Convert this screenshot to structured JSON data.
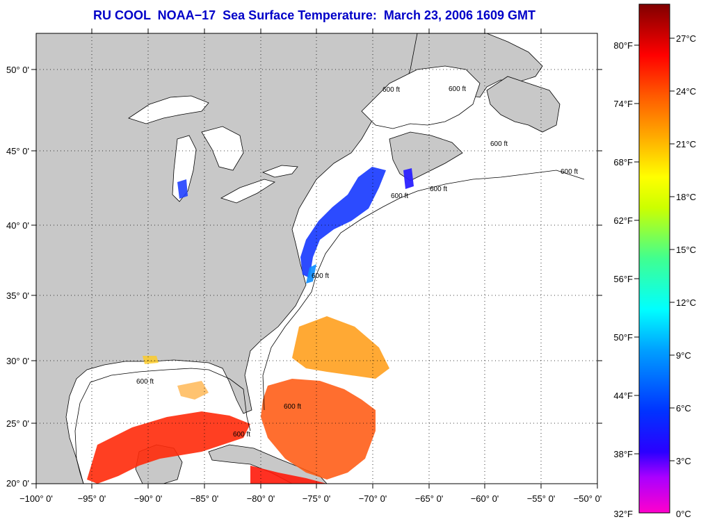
{
  "title": "RU COOL  NOAA−17  Sea Surface Temperature:  March 23, 2006 1609 GMT",
  "map": {
    "lon_ticks": [
      "−100° 0'",
      "−95° 0'",
      "−90° 0'",
      "−85° 0'",
      "−80° 0'",
      "−75° 0'",
      "−70° 0'",
      "−65° 0'",
      "−60° 0'",
      "−55° 0'",
      "−50° 0'"
    ],
    "lat_ticks": [
      "50° 0'",
      "45° 0'",
      "40° 0'",
      "35° 0'",
      "30° 0'",
      "25° 0'",
      "20° 0'"
    ],
    "isobath_labels": [
      "600 ft",
      "600 ft",
      "600 ft",
      "600 ft",
      "600 ft",
      "600 ft",
      "600 ft",
      "600 ft",
      "600 ft",
      "600 ft"
    ],
    "colors": {
      "land": "#c8c8c8",
      "ocean_nodata": "#ffffff",
      "grid": "#000000"
    }
  },
  "colorbar": {
    "fahrenheit_ticks": [
      "80°F",
      "74°F",
      "68°F",
      "62°F",
      "56°F",
      "50°F",
      "44°F",
      "38°F",
      "32°F"
    ],
    "celsius_ticks": [
      "27°C",
      "24°C",
      "21°C",
      "18°C",
      "15°C",
      "12°C",
      "9°C",
      "6°C",
      "3°C",
      "0°C"
    ],
    "gradient_colors": [
      "#ff00cc",
      "#7a00ff",
      "#0000ff",
      "#0080ff",
      "#00ffff",
      "#00ff80",
      "#ffff00",
      "#ff8000",
      "#ff0000",
      "#800000"
    ]
  }
}
